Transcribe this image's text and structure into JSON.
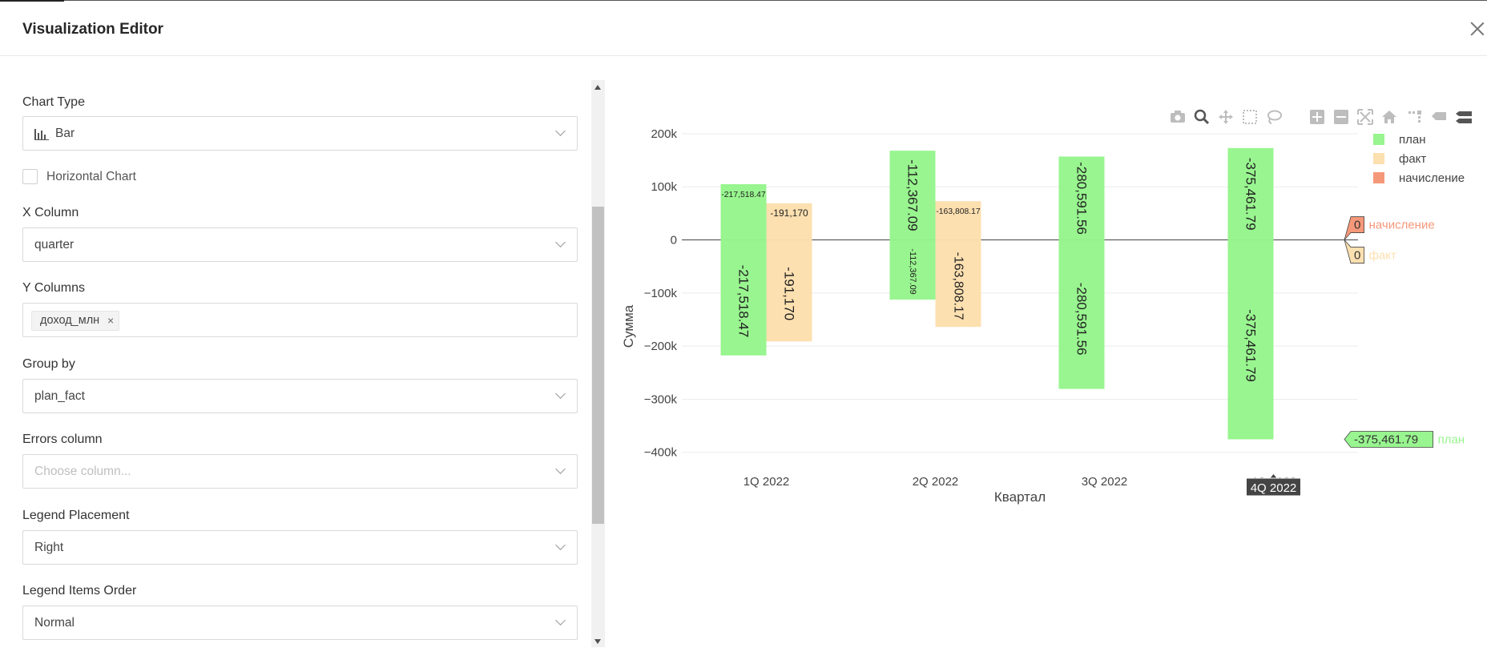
{
  "dialog": {
    "title": "Visualization Editor"
  },
  "form": {
    "chart_type": {
      "label": "Chart Type",
      "value": "Bar",
      "icon": "bar-chart-icon"
    },
    "horizontal_chart": {
      "label": "Horizontal Chart",
      "checked": false
    },
    "x_column": {
      "label": "X Column",
      "value": "quarter"
    },
    "y_columns": {
      "label": "Y Columns",
      "tags": [
        "доход_млн"
      ]
    },
    "group_by": {
      "label": "Group by",
      "value": "plan_fact"
    },
    "errors_column": {
      "label": "Errors column",
      "placeholder": "Choose column..."
    },
    "legend_placement": {
      "label": "Legend Placement",
      "value": "Right"
    },
    "legend_items_order": {
      "label": "Legend Items Order",
      "value": "Normal"
    }
  },
  "modebar": [
    "camera-icon",
    "zoom-icon",
    "pan-icon",
    "box-select-icon",
    "lasso-select-icon",
    "zoom-in-icon",
    "zoom-out-icon",
    "autoscale-icon",
    "reset-axes-icon",
    "spike-lines-icon",
    "hover-closest-icon",
    "hover-compare-icon"
  ],
  "chart_data": {
    "type": "bar",
    "xlabel": "Квартал",
    "ylabel": "Сумма",
    "categories": [
      "1Q 2022",
      "2Q 2022",
      "3Q 2022",
      "4Q 2022"
    ],
    "ylim": [
      -420000,
      215000
    ],
    "yticks": [
      -400000,
      -300000,
      -200000,
      -100000,
      0,
      100000,
      200000
    ],
    "ytick_labels": [
      "−400k",
      "−300k",
      "−200k",
      "−100k",
      "0",
      "100k",
      "200k"
    ],
    "grid": true,
    "legend_placement": "top-right",
    "series": [
      {
        "name": "план",
        "color": "#98f58f",
        "values": [
          {
            "pos": 105000,
            "neg": -217518.47,
            "pos_label": "-217,518.47",
            "neg_label": "-217,518.47"
          },
          {
            "pos": 168000,
            "neg": -112367.09,
            "pos_label": "-112,367.09",
            "neg_label": "-112,367.09"
          },
          {
            "pos": 157000,
            "neg": -280591.56,
            "pos_label": "-280,591.56",
            "neg_label": "-280,591.56"
          },
          {
            "pos": 173000,
            "neg": -375461.79,
            "pos_label": "-375,461.79",
            "neg_label": "-375,461.79"
          }
        ]
      },
      {
        "name": "факт",
        "color": "#fde0b0",
        "values": [
          {
            "pos": 69000,
            "neg": -191170,
            "pos_label": "-191,170",
            "neg_label": "-191,170"
          },
          {
            "pos": 73000,
            "neg": -163808.17,
            "pos_label": "-163,808.17",
            "neg_label": "-163,808.17"
          },
          null,
          null
        ]
      },
      {
        "name": "начисление",
        "color": "#f5987a",
        "values": [
          null,
          null,
          null,
          null
        ]
      }
    ],
    "hover": {
      "x_label": "4Q 2022",
      "items": [
        {
          "value": "0",
          "name": "начисление",
          "bg": "#f5987a",
          "text_color": "#f5987a",
          "y": 0,
          "offset": -19
        },
        {
          "value": "0",
          "name": "факт",
          "bg": "#fde0b0",
          "text_color": "#fde0b0",
          "y": 0,
          "offset": 19
        },
        {
          "value": "-375,461.79",
          "name": "план",
          "bg": "#98f58f",
          "text_color": "#98f58f",
          "y": -375461.79,
          "offset": 0
        }
      ]
    }
  }
}
